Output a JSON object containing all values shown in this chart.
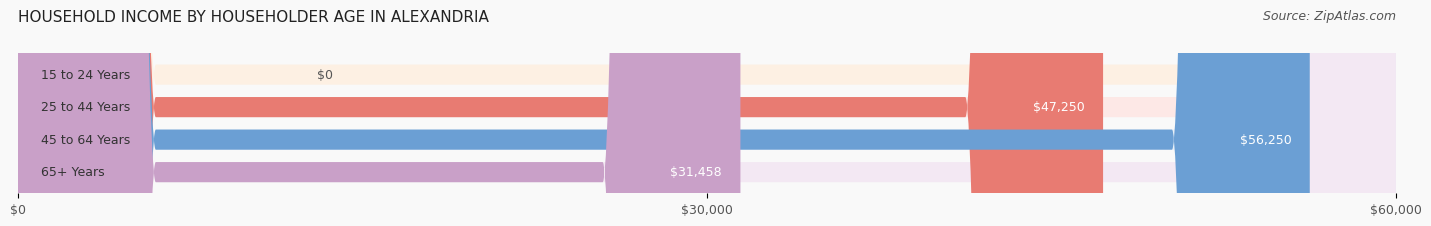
{
  "title": "HOUSEHOLD INCOME BY HOUSEHOLDER AGE IN ALEXANDRIA",
  "source": "Source: ZipAtlas.com",
  "categories": [
    "15 to 24 Years",
    "25 to 44 Years",
    "45 to 64 Years",
    "65+ Years"
  ],
  "values": [
    0,
    47250,
    56250,
    31458
  ],
  "value_labels": [
    "$0",
    "$47,250",
    "$56,250",
    "$31,458"
  ],
  "bar_colors": [
    "#f5cfa0",
    "#e87b72",
    "#6b9fd4",
    "#c9a0c8"
  ],
  "bar_bg_colors": [
    "#fdf0e3",
    "#fde8e6",
    "#e8f0f8",
    "#f3e8f3"
  ],
  "xlim": [
    0,
    60000
  ],
  "xticks": [
    0,
    30000,
    60000
  ],
  "xticklabels": [
    "$0",
    "$30,000",
    "$60,000"
  ],
  "title_fontsize": 11,
  "source_fontsize": 9,
  "label_fontsize": 9,
  "tick_fontsize": 9,
  "bar_height": 0.62,
  "background_color": "#f9f9f9"
}
